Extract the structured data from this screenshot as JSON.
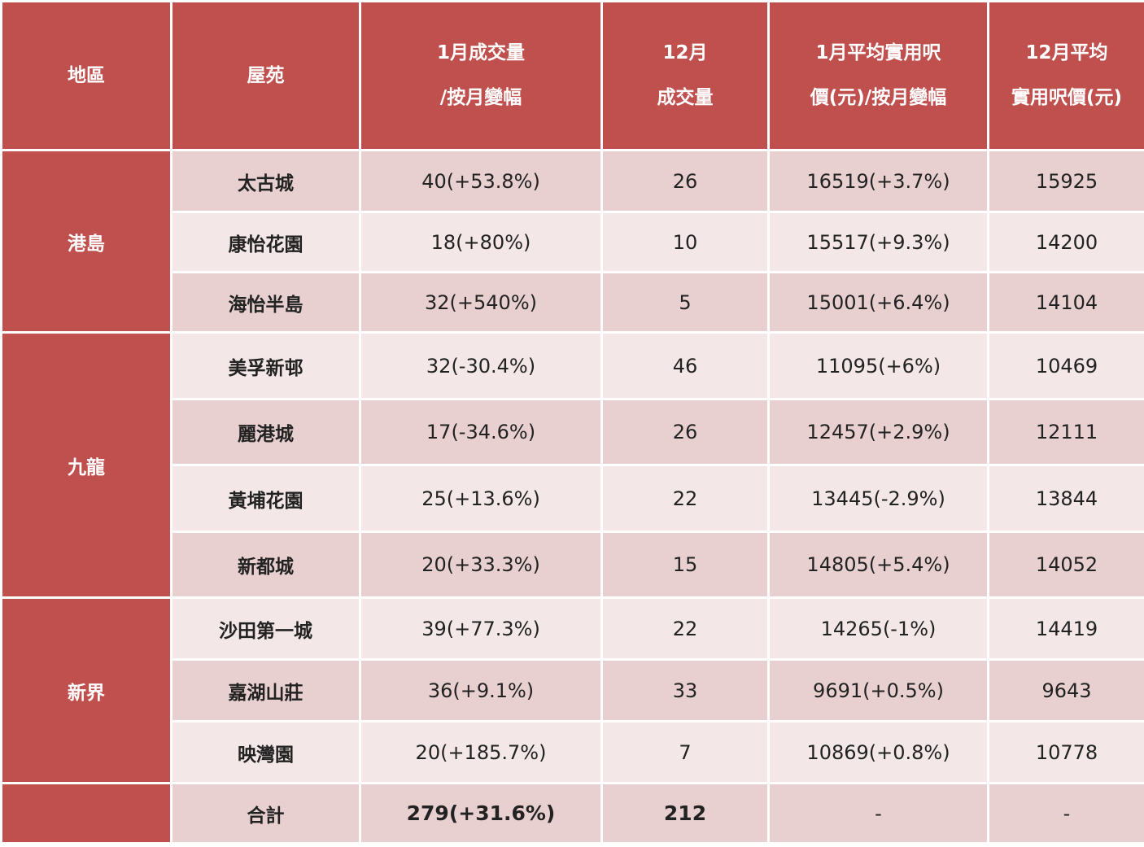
{
  "header": {
    "region": "地區",
    "estate": "屋苑",
    "jan_volume": [
      "1月成交量",
      "/按月變幅"
    ],
    "dec_volume": [
      "12月",
      "成交量"
    ],
    "jan_price": [
      "1月平均實用呎",
      "價(元)/按月變幅"
    ],
    "dec_price": [
      "12月平均",
      "實用呎價(元)"
    ]
  },
  "regions": [
    "港島",
    "九龍",
    "新界"
  ],
  "rows": [
    {
      "estate": "太古城",
      "jan_volume": "40(+53.8%)",
      "dec_volume": "26",
      "jan_price": "16519(+3.7%)",
      "dec_price": "15925"
    },
    {
      "estate": "康怡花園",
      "jan_volume": "18(+80%)",
      "dec_volume": "10",
      "jan_price": "15517(+9.3%)",
      "dec_price": "14200"
    },
    {
      "estate": "海怡半島",
      "jan_volume": "32(+540%)",
      "dec_volume": "5",
      "jan_price": "15001(+6.4%)",
      "dec_price": "14104"
    },
    {
      "estate": "美孚新邨",
      "jan_volume": "32(-30.4%)",
      "dec_volume": "46",
      "jan_price": "11095(+6%)",
      "dec_price": "10469"
    },
    {
      "estate": "麗港城",
      "jan_volume": "17(-34.6%)",
      "dec_volume": "26",
      "jan_price": "12457(+2.9%)",
      "dec_price": "12111"
    },
    {
      "estate": "黃埔花園",
      "jan_volume": "25(+13.6%)",
      "dec_volume": "22",
      "jan_price": "13445(-2.9%)",
      "dec_price": "13844"
    },
    {
      "estate": "新都城",
      "jan_volume": "20(+33.3%)",
      "dec_volume": "15",
      "jan_price": "14805(+5.4%)",
      "dec_price": "14052"
    },
    {
      "estate": "沙田第一城",
      "jan_volume": "39(+77.3%)",
      "dec_volume": "22",
      "jan_price": "14265(-1%)",
      "dec_price": "14419"
    },
    {
      "estate": "嘉湖山莊",
      "jan_volume": "36(+9.1%)",
      "dec_volume": "33",
      "jan_price": "9691(+0.5%)",
      "dec_price": "9643"
    },
    {
      "estate": "映灣園",
      "jan_volume": "20(+185.7%)",
      "dec_volume": "7",
      "jan_price": "10869(+0.8%)",
      "dec_price": "10778"
    }
  ],
  "total": {
    "estate": "合計",
    "jan_volume": "279(+31.6%)",
    "dec_volume": "212",
    "jan_price": "-",
    "dec_price": "-"
  },
  "colors": {
    "header_bg": "#c0504d",
    "row_dark": "#e8d0d1",
    "row_light": "#f3e7e7"
  }
}
